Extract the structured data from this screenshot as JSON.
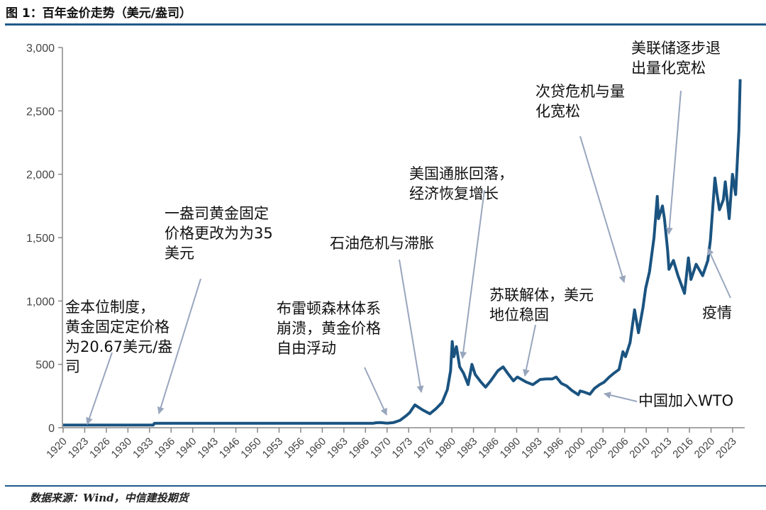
{
  "header": {
    "title": "图 1：百年金价走势（美元/盎司）"
  },
  "footer": {
    "source": "数据来源：Wind，中信建投期货"
  },
  "colors": {
    "line": "#1a5380",
    "rule": "#1f5a8c",
    "arrow": "#98a6bd",
    "axis": "#888888"
  },
  "chart_data": {
    "type": "line",
    "title": "图 1：百年金价走势（美元/盎司）",
    "xlabel": "",
    "ylabel": "",
    "xlim": [
      1920,
      2024.5
    ],
    "ylim": [
      0,
      3000
    ],
    "grid": false,
    "y_ticks": [
      0,
      500,
      1000,
      1500,
      2000,
      2500,
      3000
    ],
    "y_tick_labels": [
      "0",
      "500",
      "1,000",
      "1,500",
      "2,000",
      "2,500",
      "3,000"
    ],
    "x_tick_labels": [
      "1920",
      "1923",
      "1926",
      "1930",
      "1933",
      "1936",
      "1940",
      "1943",
      "1946",
      "1950",
      "1953",
      "1956",
      "1960",
      "1963",
      "1966",
      "1970",
      "1973",
      "1976",
      "1980",
      "1983",
      "1986",
      "1990",
      "1993",
      "1996",
      "2000",
      "2003",
      "2006",
      "2010",
      "2013",
      "2016",
      "2020",
      "2023"
    ],
    "series": [
      {
        "x": [
          1920,
          1933.9,
          1934.1,
          1967.9,
          1968.3,
          1969,
          1970,
          1971,
          1972,
          1973,
          1973.5,
          1974.3,
          1974.9,
          1975.5,
          1976.6,
          1977.5,
          1978.5,
          1979.3,
          1979.8,
          1980.05,
          1980.3,
          1980.7,
          1981.2,
          1981.8,
          1982.5,
          1983.1,
          1983.6,
          1984.5,
          1985.2,
          1986,
          1987.1,
          1987.9,
          1988.6,
          1989.5,
          1990.1,
          1990.8,
          1991.5,
          1992.5,
          1993.6,
          1994.5,
          1995.5,
          1996.1,
          1996.9,
          1997.7,
          1998.5,
          1999.5,
          1999.8,
          2000.5,
          2001.3,
          2002,
          2002.8,
          2003.5,
          2004.3,
          2005,
          2005.8,
          2006.4,
          2006.8,
          2007.5,
          2008.2,
          2008.8,
          2009.5,
          2009.9,
          2010.5,
          2011.2,
          2011.7,
          2011.9,
          2012.5,
          2012.8,
          2013.3,
          2013.5,
          2014.2,
          2014.9,
          2015.9,
          2016.5,
          2016.9,
          2017.7,
          2018.7,
          2019.5,
          2019.9,
          2020.6,
          2020.9,
          2021.3,
          2021.9,
          2022.2,
          2022.8,
          2023.3,
          2023.8,
          2024.0,
          2024.3,
          2024.5
        ],
        "y": [
          20.67,
          20.67,
          35,
          35,
          39,
          41,
          36,
          41,
          58,
          97,
          120,
          180,
          160,
          140,
          110,
          148,
          200,
          300,
          450,
          680,
          560,
          640,
          480,
          430,
          340,
          500,
          420,
          360,
          320,
          370,
          450,
          480,
          430,
          370,
          400,
          380,
          360,
          340,
          380,
          385,
          385,
          400,
          350,
          330,
          295,
          260,
          290,
          280,
          265,
          310,
          340,
          360,
          400,
          430,
          460,
          600,
          560,
          670,
          930,
          750,
          950,
          1100,
          1230,
          1500,
          1825,
          1650,
          1750,
          1650,
          1400,
          1250,
          1320,
          1200,
          1060,
          1340,
          1170,
          1290,
          1200,
          1320,
          1480,
          1970,
          1850,
          1720,
          1800,
          1940,
          1650,
          2000,
          1840,
          2050,
          2350,
          2750
        ]
      }
    ],
    "annotations": [
      {
        "lines": [
          "金本位制度，",
          "黄金固定定价格",
          "为20.67美元/盎",
          "司"
        ]
      },
      {
        "lines": [
          "一盎司黄金固定",
          "价格更改为为35",
          "美元"
        ]
      },
      {
        "lines": [
          "布雷顿森林体系",
          "崩溃，黄金价格",
          "自由浮动"
        ]
      },
      {
        "lines": [
          "石油危机与滞胀"
        ]
      },
      {
        "lines": [
          "美国通胀回落，",
          "经济恢复增长"
        ]
      },
      {
        "lines": [
          "苏联解体，美元",
          "地位稳固"
        ]
      },
      {
        "lines": [
          "中国加入WTO"
        ]
      },
      {
        "lines": [
          "次贷危机与量",
          "化宽松"
        ]
      },
      {
        "lines": [
          "美联储逐步退",
          "出量化宽松"
        ]
      },
      {
        "lines": [
          "疫情"
        ]
      }
    ]
  }
}
